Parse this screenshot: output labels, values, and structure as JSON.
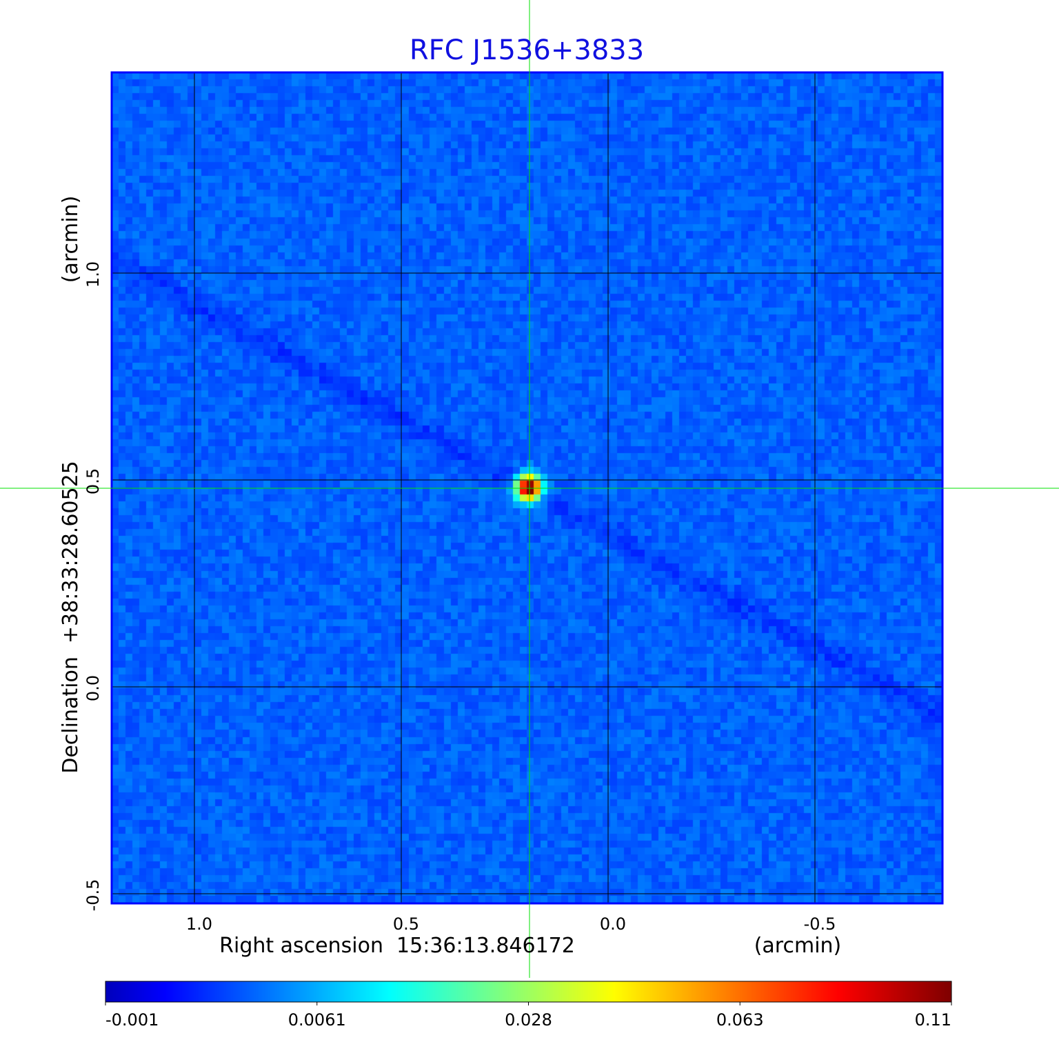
{
  "chart_data": {
    "type": "heatmap",
    "title": "RFC J1536+3833",
    "xlabel": "Right ascension  15:36:13.846172",
    "xunit": "(arcmin)",
    "ylabel": "Declination  +38:33:28.60525",
    "yunit": "(arcmin)",
    "xlim": [
      1.2,
      -0.81
    ],
    "ylim": [
      -0.52,
      1.48
    ],
    "x_ticks": [
      {
        "value": 1.0,
        "label": "1.0"
      },
      {
        "value": 0.5,
        "label": "0.5"
      },
      {
        "value": 0.0,
        "label": "0.0"
      },
      {
        "value": -0.5,
        "label": "-0.5"
      }
    ],
    "y_ticks": [
      {
        "value": 1.0,
        "label": "1.0"
      },
      {
        "value": 0.5,
        "label": "0.5"
      },
      {
        "value": 0.0,
        "label": "0.0"
      },
      {
        "value": -0.5,
        "label": "-0.5"
      }
    ],
    "grid": true,
    "crosshair": {
      "x": 0.19,
      "y": 0.48,
      "color": "#00e000"
    },
    "source": {
      "x": 0.19,
      "y": 0.48,
      "peak": 0.11
    },
    "colormap": "jet",
    "colorbar": {
      "placement": "bottom",
      "ticks": [
        "-0.001",
        "0.0061",
        "0.028",
        "0.063",
        "0.11"
      ],
      "range": [
        -0.001,
        0.11
      ]
    },
    "colors": {
      "title": "#1010e0",
      "background_level": "#1040f0",
      "frame": "#0000ff"
    }
  }
}
